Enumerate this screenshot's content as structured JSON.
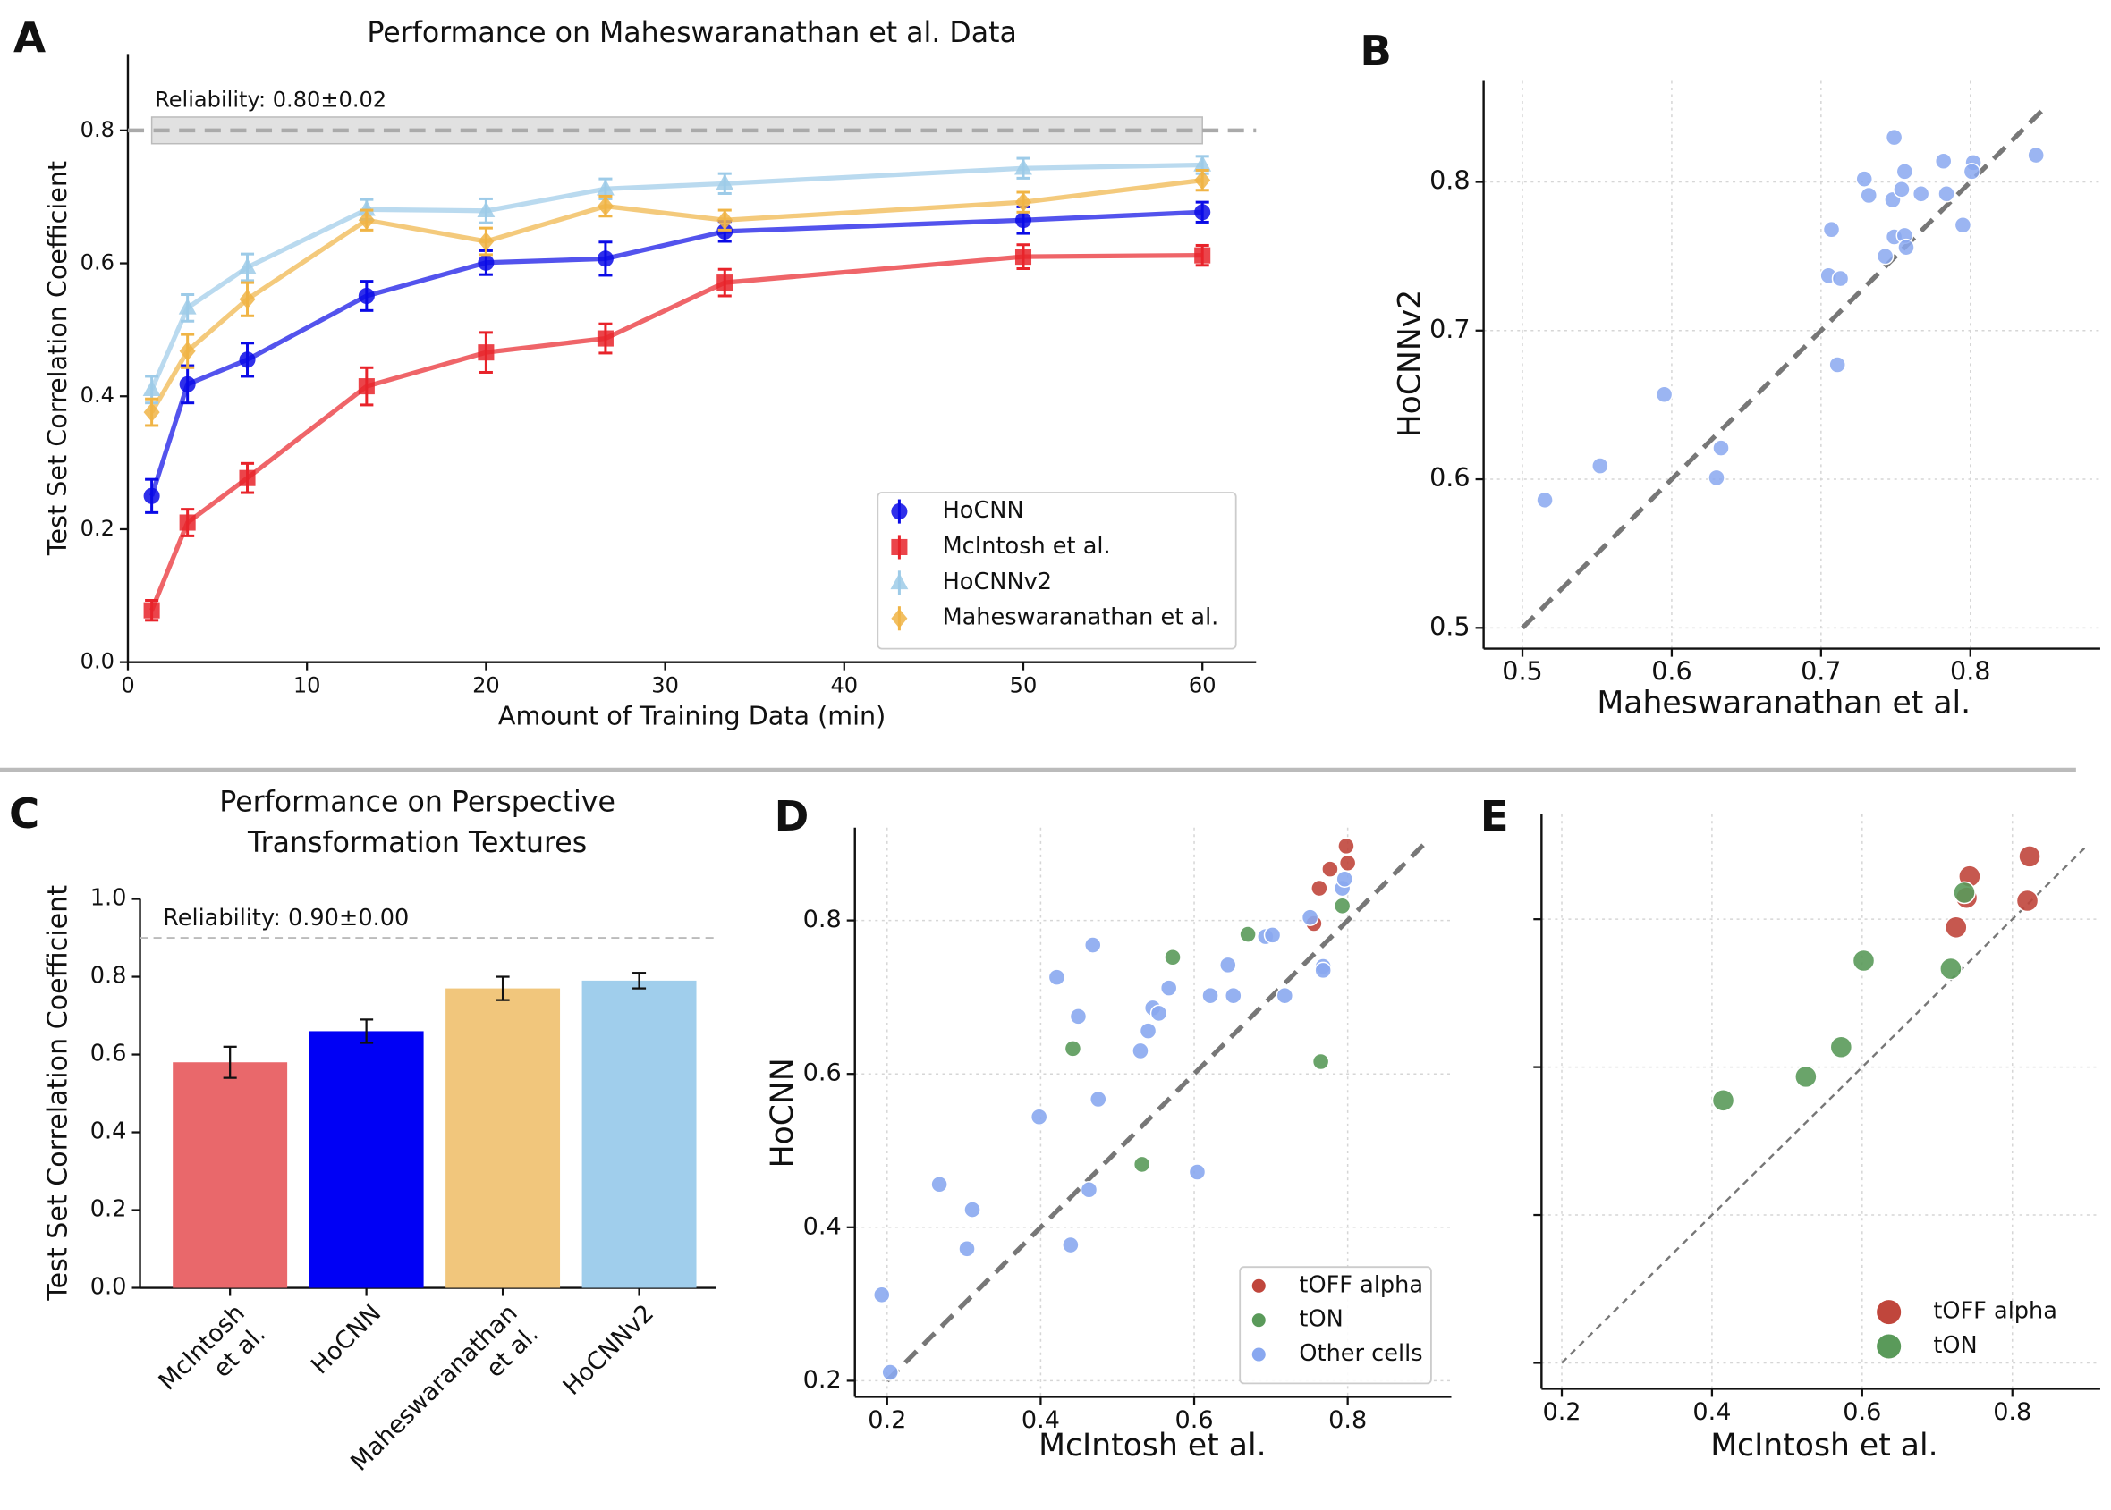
{
  "chart_data": [
    {
      "type": "line",
      "panel": "A",
      "title": "Performance on Maheswaranathan et al. Data",
      "xlabel": "Amount of Training Data (min)",
      "ylabel": "Test Set Correlation Coefficient",
      "x": [
        1.33,
        3.33,
        6.67,
        13.33,
        20,
        26.67,
        33.33,
        50,
        60
      ],
      "xlim": [
        0,
        63
      ],
      "xticks": [
        0,
        10,
        20,
        30,
        40,
        50,
        60
      ],
      "ylim": [
        0,
        0.915
      ],
      "yticks": [
        {
          "value": 0,
          "label": "0.0"
        },
        0.2,
        0.4,
        0.6,
        0.8
      ],
      "grid": false,
      "legend": "lower right",
      "reliability": {
        "value": 0.8,
        "error": 0.02,
        "label": "Reliability: 0.80±0.02"
      },
      "series": [
        {
          "name": "HoCNN",
          "color": "#0a0ae6",
          "marker": "circle",
          "values": [
            0.25,
            0.418,
            0.455,
            0.551,
            0.601,
            0.607,
            0.648,
            0.665,
            0.677
          ],
          "errors": [
            0.025,
            0.028,
            0.025,
            0.022,
            0.018,
            0.025,
            0.015,
            0.02,
            0.015
          ]
        },
        {
          "name": "McIntosh et al.",
          "color": "#e8232a",
          "marker": "square",
          "values": [
            0.078,
            0.21,
            0.277,
            0.415,
            0.466,
            0.487,
            0.571,
            0.61,
            0.612
          ],
          "errors": [
            0.015,
            0.02,
            0.022,
            0.028,
            0.03,
            0.022,
            0.02,
            0.018,
            0.015
          ]
        },
        {
          "name": "HoCNNv2",
          "color": "#9dcbe8",
          "marker": "triangle",
          "values": [
            0.41,
            0.533,
            0.594,
            0.681,
            0.679,
            0.712,
            0.72,
            0.743,
            0.748
          ],
          "errors": [
            0.02,
            0.02,
            0.02,
            0.015,
            0.018,
            0.015,
            0.015,
            0.015,
            0.013
          ]
        },
        {
          "name": "Maheswaranathan et al.",
          "color": "#f0b445",
          "marker": "diamond",
          "values": [
            0.376,
            0.468,
            0.546,
            0.665,
            0.633,
            0.686,
            0.665,
            0.692,
            0.725
          ],
          "errors": [
            0.02,
            0.025,
            0.025,
            0.015,
            0.02,
            0.015,
            0.015,
            0.015,
            0.015
          ]
        }
      ]
    },
    {
      "type": "scatter",
      "panel": "B",
      "xlabel": "Maheswaranathan et al.",
      "ylabel": "HoCNNv2",
      "xlim": [
        0.474,
        0.887
      ],
      "xticks": [
        0.5,
        0.6,
        0.7,
        0.8
      ],
      "ylim": [
        0.486,
        0.868
      ],
      "yticks": [
        0.5,
        0.6,
        0.7,
        0.8
      ],
      "grid": true,
      "diagonal": [
        0.5,
        0.85
      ],
      "series": [
        {
          "name": "cells",
          "color": "#89a8f0",
          "x": [
            0.515,
            0.552,
            0.595,
            0.63,
            0.633,
            0.705,
            0.713,
            0.707,
            0.711,
            0.729,
            0.732,
            0.743,
            0.749,
            0.748,
            0.749,
            0.754,
            0.756,
            0.756,
            0.757,
            0.767,
            0.782,
            0.784,
            0.795,
            0.802,
            0.801,
            0.844
          ],
          "values": [
            0.586,
            0.609,
            0.657,
            0.601,
            0.621,
            0.737,
            0.735,
            0.768,
            0.677,
            0.802,
            0.791,
            0.75,
            0.83,
            0.788,
            0.763,
            0.795,
            0.807,
            0.764,
            0.756,
            0.792,
            0.814,
            0.792,
            0.771,
            0.813,
            0.807,
            0.818
          ]
        }
      ]
    },
    {
      "type": "bar",
      "panel": "C",
      "title": "Performance on Perspective\nTransformation Textures",
      "ylabel": "Test Set Correlation Coefficient",
      "categories": [
        "McIntosh\net al.",
        "HoCNN",
        "Maheswaranathan\net al.",
        "HoCNNv2"
      ],
      "values": [
        0.58,
        0.66,
        0.77,
        0.79
      ],
      "errors": [
        0.04,
        0.03,
        0.03,
        0.02
      ],
      "colors": [
        "#e9686b",
        "#0000f5",
        "#f1c67c",
        "#a0ceec"
      ],
      "ylim": [
        0,
        1.0
      ],
      "yticks": [
        {
          "value": 0,
          "label": "0.0"
        },
        0.2,
        0.4,
        0.6,
        0.8,
        {
          "value": 1,
          "label": "1.0"
        }
      ],
      "grid": false,
      "reliability": {
        "value": 0.9,
        "error": 0,
        "label": "Reliability: 0.90±0.00"
      }
    },
    {
      "type": "scatter",
      "panel": "D",
      "xlabel": "McIntosh et al.",
      "ylabel": "HoCNN",
      "xlim": [
        0.158,
        0.935
      ],
      "xticks": [
        0.2,
        0.4,
        0.6,
        0.8
      ],
      "ylim": [
        0.179,
        0.921
      ],
      "yticks": [
        0.2,
        0.4,
        0.6,
        0.8
      ],
      "grid": true,
      "diagonal": [
        0.2,
        0.9
      ],
      "legend": "lower right",
      "series": [
        {
          "name": "tOFF alpha",
          "color": "#c0463c",
          "x": [
            0.798,
            0.777,
            0.8,
            0.763,
            0.756
          ],
          "values": [
            0.897,
            0.867,
            0.875,
            0.842,
            0.796
          ]
        },
        {
          "name": "tON",
          "color": "#5a9a5a",
          "x": [
            0.67,
            0.572,
            0.793,
            0.442,
            0.765,
            0.532
          ],
          "values": [
            0.782,
            0.752,
            0.819,
            0.633,
            0.616,
            0.482
          ]
        },
        {
          "name": "Other cells",
          "color": "#89a8f0",
          "x": [
            0.193,
            0.204,
            0.268,
            0.311,
            0.304,
            0.398,
            0.421,
            0.449,
            0.468,
            0.475,
            0.463,
            0.439,
            0.53,
            0.54,
            0.546,
            0.554,
            0.567,
            0.604,
            0.621,
            0.644,
            0.651,
            0.693,
            0.702,
            0.718,
            0.751,
            0.768,
            0.768,
            0.793,
            0.796
          ],
          "values": [
            0.312,
            0.211,
            0.456,
            0.423,
            0.372,
            0.544,
            0.726,
            0.675,
            0.768,
            0.567,
            0.449,
            0.377,
            0.63,
            0.656,
            0.686,
            0.679,
            0.712,
            0.472,
            0.702,
            0.742,
            0.702,
            0.779,
            0.781,
            0.702,
            0.804,
            0.74,
            0.735,
            0.842,
            0.854
          ]
        }
      ]
    },
    {
      "type": "scatter",
      "panel": "E",
      "xlabel": "McIntosh et al.",
      "xlim": [
        0.173,
        0.917
      ],
      "xticks": [
        0.2,
        0.4,
        0.6,
        0.8
      ],
      "ylim": [
        0.165,
        0.942
      ],
      "yticks": [
        0.2,
        0.4,
        0.6,
        0.8
      ],
      "ytick_labels": false,
      "grid": true,
      "diagonal": [
        0.2,
        0.9
      ],
      "legend": "lower right",
      "series": [
        {
          "name": "tOFF alpha",
          "color": "#c0463c",
          "x": [
            0.823,
            0.743,
            0.739,
            0.82,
            0.725
          ],
          "values": [
            0.885,
            0.858,
            0.829,
            0.825,
            0.789
          ]
        },
        {
          "name": "tON",
          "color": "#5a9a5a",
          "x": [
            0.736,
            0.602,
            0.718,
            0.572,
            0.525,
            0.415
          ],
          "values": [
            0.836,
            0.744,
            0.733,
            0.627,
            0.587,
            0.555
          ]
        }
      ]
    }
  ]
}
